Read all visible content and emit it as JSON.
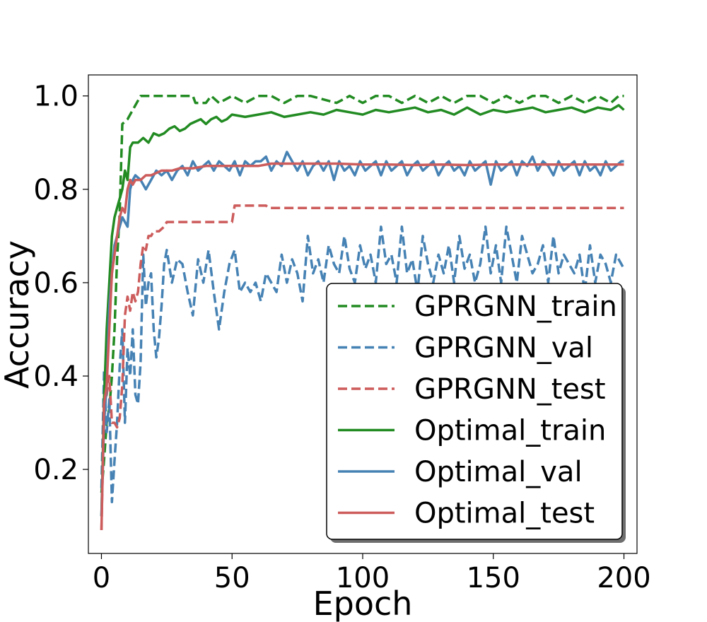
{
  "chart_data": {
    "type": "line",
    "title": "",
    "xlabel": "Epoch",
    "ylabel": "Accuracy",
    "xlim": [
      -5,
      205
    ],
    "ylim": [
      0.02,
      1.045
    ],
    "xticks": [
      0,
      50,
      100,
      150,
      200
    ],
    "xtick_labels": [
      "0",
      "50",
      "100",
      "150",
      "200"
    ],
    "yticks": [
      0.2,
      0.4,
      0.6,
      0.8,
      1.0
    ],
    "ytick_labels": [
      "0.2",
      "0.4",
      "0.6",
      "0.8",
      "1.0"
    ],
    "grid": false,
    "legend_position": "lower-right",
    "series": [
      {
        "name": "GPRGNN_train",
        "color": "#228b22",
        "dash": "dashed",
        "x": [
          0,
          1,
          2,
          3,
          4,
          5,
          6,
          7,
          8,
          9,
          10,
          12,
          14,
          15,
          20,
          30,
          35,
          36,
          40,
          42,
          45,
          50,
          55,
          60,
          65,
          70,
          75,
          80,
          90,
          95,
          100,
          105,
          110,
          115,
          120,
          125,
          130,
          135,
          140,
          145,
          150,
          155,
          160,
          165,
          170,
          175,
          180,
          185,
          190,
          195,
          198,
          200
        ],
        "y": [
          0.15,
          0.22,
          0.3,
          0.33,
          0.4,
          0.5,
          0.65,
          0.75,
          0.94,
          0.945,
          0.95,
          0.97,
          0.99,
          1.0,
          1.0,
          1.0,
          1.0,
          0.985,
          0.985,
          1.0,
          0.985,
          1.0,
          0.985,
          1.0,
          1.0,
          0.985,
          1.0,
          1.0,
          0.985,
          1.0,
          0.985,
          1.0,
          1.0,
          0.985,
          1.0,
          0.985,
          1.0,
          0.985,
          1.0,
          1.0,
          0.985,
          1.0,
          0.985,
          1.0,
          1.0,
          0.985,
          1.0,
          0.985,
          1.0,
          0.985,
          1.0,
          1.0
        ]
      },
      {
        "name": "GPRGNN_val",
        "color": "#4682b4",
        "dash": "dashed",
        "x": [
          0,
          1,
          2,
          3,
          4,
          5,
          6,
          7,
          8,
          9,
          10,
          11,
          12,
          13,
          14,
          15,
          16,
          17,
          18,
          19,
          20,
          21,
          22,
          23,
          24,
          25,
          27,
          29,
          31,
          33,
          35,
          37,
          39,
          41,
          43,
          45,
          47,
          49,
          51,
          53,
          55,
          57,
          59,
          61,
          63,
          65,
          67,
          69,
          71,
          73,
          75,
          77,
          79,
          81,
          83,
          85,
          87,
          89,
          91,
          93,
          95,
          97,
          99,
          101,
          103,
          105,
          107,
          109,
          111,
          113,
          115,
          117,
          119,
          121,
          123,
          125,
          127,
          129,
          131,
          133,
          135,
          137,
          139,
          141,
          143,
          145,
          147,
          149,
          151,
          153,
          155,
          157,
          159,
          161,
          163,
          165,
          167,
          169,
          171,
          173,
          175,
          177,
          179,
          181,
          183,
          185,
          187,
          189,
          191,
          193,
          195,
          197,
          199,
          200
        ],
        "y": [
          0.16,
          0.41,
          0.28,
          0.35,
          0.13,
          0.22,
          0.3,
          0.42,
          0.5,
          0.3,
          0.46,
          0.4,
          0.5,
          0.36,
          0.34,
          0.43,
          0.66,
          0.55,
          0.6,
          0.62,
          0.5,
          0.44,
          0.48,
          0.55,
          0.64,
          0.67,
          0.6,
          0.65,
          0.64,
          0.58,
          0.53,
          0.65,
          0.6,
          0.67,
          0.58,
          0.5,
          0.58,
          0.64,
          0.67,
          0.58,
          0.6,
          0.58,
          0.6,
          0.56,
          0.62,
          0.6,
          0.58,
          0.66,
          0.6,
          0.65,
          0.62,
          0.56,
          0.7,
          0.62,
          0.65,
          0.6,
          0.68,
          0.64,
          0.62,
          0.7,
          0.63,
          0.6,
          0.68,
          0.63,
          0.66,
          0.6,
          0.72,
          0.64,
          0.66,
          0.6,
          0.72,
          0.62,
          0.65,
          0.58,
          0.7,
          0.64,
          0.6,
          0.66,
          0.62,
          0.68,
          0.6,
          0.7,
          0.63,
          0.66,
          0.6,
          0.64,
          0.72,
          0.62,
          0.68,
          0.6,
          0.72,
          0.66,
          0.6,
          0.7,
          0.66,
          0.62,
          0.64,
          0.68,
          0.6,
          0.7,
          0.62,
          0.66,
          0.64,
          0.62,
          0.66,
          0.58,
          0.68,
          0.6,
          0.66,
          0.64,
          0.6,
          0.66,
          0.64,
          0.63
        ]
      },
      {
        "name": "GPRGNN_test",
        "color": "#cd5c5c",
        "dash": "dashed",
        "x": [
          0,
          1,
          2,
          3,
          4,
          5,
          6,
          7,
          8,
          9,
          10,
          11,
          12,
          13,
          14,
          15,
          16,
          17,
          18,
          19,
          20,
          22,
          24,
          25,
          30,
          40,
          50,
          51,
          55,
          60,
          63,
          64,
          70,
          100,
          150,
          200
        ],
        "y": [
          0.07,
          0.34,
          0.36,
          0.4,
          0.3,
          0.3,
          0.29,
          0.31,
          0.38,
          0.53,
          0.57,
          0.54,
          0.58,
          0.56,
          0.58,
          0.64,
          0.68,
          0.67,
          0.7,
          0.7,
          0.71,
          0.71,
          0.72,
          0.73,
          0.73,
          0.73,
          0.73,
          0.765,
          0.765,
          0.765,
          0.765,
          0.76,
          0.76,
          0.76,
          0.76,
          0.76
        ]
      },
      {
        "name": "Optimal_train",
        "color": "#228b22",
        "dash": "solid",
        "x": [
          0,
          1,
          2,
          3,
          4,
          5,
          6,
          7,
          8,
          9,
          10,
          11,
          12,
          13,
          14,
          15,
          16,
          18,
          20,
          22,
          24,
          26,
          28,
          30,
          32,
          34,
          36,
          38,
          40,
          42,
          44,
          46,
          48,
          50,
          55,
          60,
          65,
          70,
          75,
          80,
          85,
          90,
          95,
          100,
          105,
          110,
          115,
          120,
          125,
          130,
          135,
          140,
          145,
          150,
          155,
          160,
          165,
          170,
          175,
          180,
          185,
          190,
          195,
          198,
          200
        ],
        "y": [
          0.1,
          0.35,
          0.5,
          0.6,
          0.7,
          0.74,
          0.76,
          0.78,
          0.8,
          0.84,
          0.82,
          0.89,
          0.9,
          0.9,
          0.9,
          0.905,
          0.91,
          0.9,
          0.92,
          0.915,
          0.92,
          0.93,
          0.935,
          0.925,
          0.93,
          0.94,
          0.945,
          0.95,
          0.94,
          0.95,
          0.955,
          0.945,
          0.95,
          0.96,
          0.955,
          0.96,
          0.965,
          0.955,
          0.96,
          0.965,
          0.96,
          0.97,
          0.965,
          0.96,
          0.97,
          0.965,
          0.97,
          0.975,
          0.965,
          0.97,
          0.96,
          0.975,
          0.96,
          0.97,
          0.965,
          0.97,
          0.975,
          0.965,
          0.97,
          0.975,
          0.965,
          0.975,
          0.97,
          0.98,
          0.97
        ]
      },
      {
        "name": "Optimal_val",
        "color": "#4682b4",
        "dash": "solid",
        "x": [
          0,
          1,
          2,
          3,
          4,
          5,
          6,
          7,
          8,
          9,
          10,
          11,
          12,
          13,
          15,
          17,
          19,
          21,
          23,
          25,
          27,
          29,
          31,
          33,
          35,
          37,
          39,
          41,
          43,
          45,
          47,
          49,
          51,
          53,
          55,
          57,
          59,
          61,
          63,
          65,
          67,
          69,
          71,
          73,
          75,
          77,
          79,
          81,
          83,
          85,
          87,
          89,
          91,
          93,
          95,
          97,
          99,
          101,
          103,
          105,
          107,
          109,
          111,
          113,
          115,
          117,
          119,
          121,
          123,
          125,
          127,
          129,
          131,
          133,
          135,
          137,
          139,
          141,
          143,
          145,
          147,
          149,
          151,
          153,
          155,
          157,
          159,
          161,
          163,
          165,
          167,
          169,
          171,
          173,
          175,
          177,
          179,
          181,
          183,
          185,
          187,
          189,
          191,
          193,
          195,
          197,
          199,
          200
        ],
        "y": [
          0.1,
          0.3,
          0.38,
          0.55,
          0.62,
          0.68,
          0.7,
          0.72,
          0.74,
          0.73,
          0.72,
          0.8,
          0.82,
          0.83,
          0.82,
          0.8,
          0.82,
          0.84,
          0.83,
          0.84,
          0.82,
          0.84,
          0.85,
          0.83,
          0.86,
          0.84,
          0.85,
          0.86,
          0.84,
          0.86,
          0.85,
          0.84,
          0.86,
          0.83,
          0.86,
          0.85,
          0.86,
          0.86,
          0.87,
          0.84,
          0.86,
          0.85,
          0.88,
          0.86,
          0.84,
          0.86,
          0.83,
          0.85,
          0.86,
          0.84,
          0.86,
          0.82,
          0.86,
          0.84,
          0.85,
          0.83,
          0.86,
          0.84,
          0.85,
          0.86,
          0.83,
          0.86,
          0.84,
          0.85,
          0.86,
          0.83,
          0.85,
          0.86,
          0.84,
          0.85,
          0.86,
          0.83,
          0.85,
          0.86,
          0.84,
          0.85,
          0.83,
          0.86,
          0.84,
          0.85,
          0.86,
          0.81,
          0.86,
          0.84,
          0.85,
          0.86,
          0.83,
          0.86,
          0.85,
          0.87,
          0.84,
          0.86,
          0.85,
          0.83,
          0.86,
          0.84,
          0.85,
          0.86,
          0.83,
          0.86,
          0.84,
          0.85,
          0.83,
          0.86,
          0.84,
          0.85,
          0.86,
          0.86
        ]
      },
      {
        "name": "Optimal_test",
        "color": "#cd5c5c",
        "dash": "solid",
        "x": [
          0,
          1,
          2,
          3,
          4,
          5,
          6,
          7,
          8,
          9,
          10,
          11,
          12,
          13,
          14,
          15,
          17,
          19,
          21,
          23,
          25,
          27,
          30,
          35,
          40,
          45,
          50,
          55,
          60,
          65,
          70,
          80,
          90,
          100,
          110,
          120,
          130,
          140,
          150,
          160,
          170,
          180,
          190,
          200
        ],
        "y": [
          0.07,
          0.34,
          0.38,
          0.5,
          0.62,
          0.66,
          0.7,
          0.74,
          0.76,
          0.75,
          0.8,
          0.82,
          0.81,
          0.82,
          0.82,
          0.82,
          0.83,
          0.83,
          0.835,
          0.84,
          0.84,
          0.84,
          0.845,
          0.845,
          0.85,
          0.85,
          0.85,
          0.85,
          0.85,
          0.855,
          0.855,
          0.855,
          0.855,
          0.853,
          0.853,
          0.852,
          0.853,
          0.852,
          0.853,
          0.853,
          0.853,
          0.853,
          0.853,
          0.853
        ]
      }
    ]
  }
}
